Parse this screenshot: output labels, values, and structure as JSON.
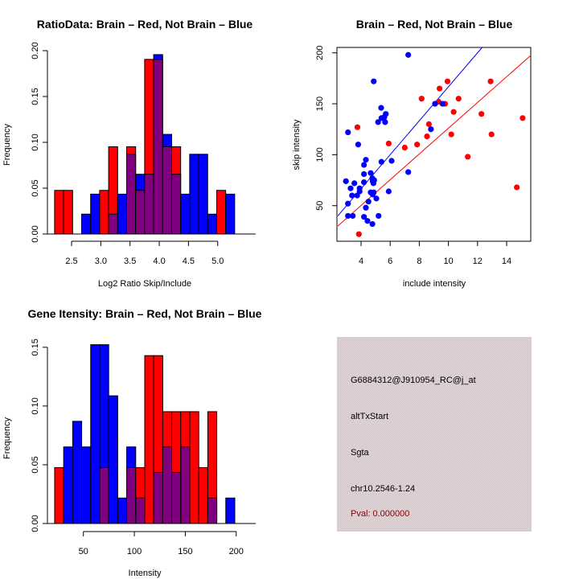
{
  "colors": {
    "brain": "#ff0000",
    "not_brain": "#0000ff",
    "overlap": "#800080",
    "info_panel_bg": "#e8c4cc",
    "pval_text": "#8b0000"
  },
  "chart_data": [
    {
      "id": "ratio-hist",
      "type": "bar",
      "title": "RatioData: Brain – Red, Not Brain – Blue",
      "xlabel": "Log2 Ratio Skip/Include",
      "ylabel": "Frequency",
      "xlim": [
        2.2,
        5.3
      ],
      "ylim": [
        0,
        0.2
      ],
      "xticks": [
        "2.5",
        "3.0",
        "3.5",
        "4.0",
        "4.5",
        "5.0"
      ],
      "xtick_values": [
        2.5,
        3.0,
        3.5,
        4.0,
        4.5,
        5.0
      ],
      "yticks": [
        "0.00",
        "0.05",
        "0.10",
        "0.15",
        "0.20"
      ],
      "ytick_values": [
        0,
        0.05,
        0.1,
        0.15,
        0.2
      ],
      "bin_start": 2.21,
      "bin_width": 0.154,
      "series": [
        {
          "name": "Brain",
          "color": "red",
          "values": [
            0.0476,
            0.0476,
            0,
            0,
            0,
            0.0476,
            0.0952,
            0,
            0.0952,
            0.0476,
            0.1905,
            0.1905,
            0.0952,
            0.0952,
            0,
            0,
            0,
            0,
            0.0476,
            0
          ]
        },
        {
          "name": "Not Brain",
          "color": "blue",
          "values": [
            0,
            0,
            0,
            0.0217,
            0.0435,
            0,
            0.0217,
            0.0435,
            0.087,
            0.0652,
            0.0652,
            0.1957,
            0.1087,
            0.0652,
            0.0435,
            0.087,
            0.087,
            0.0217,
            0,
            0.0435
          ]
        }
      ]
    },
    {
      "id": "intensity-scatter",
      "type": "scatter",
      "title": "Brain – Red, Not Brain – Blue",
      "xlabel": "include intensity",
      "ylabel": "skip intensity",
      "xlim": [
        2.4,
        15.7
      ],
      "ylim": [
        15,
        205
      ],
      "xticks": [
        "4",
        "6",
        "8",
        "10",
        "12",
        "14"
      ],
      "xtick_values": [
        4,
        6,
        8,
        10,
        12,
        14
      ],
      "yticks": [
        "50",
        "100",
        "150",
        "200"
      ],
      "ytick_values": [
        50,
        100,
        150,
        200
      ],
      "series": [
        {
          "name": "Not Brain",
          "color": "blue",
          "points": [
            [
              7.24,
              198
            ],
            [
              4.87,
              172
            ],
            [
              5.38,
              146
            ],
            [
              5.4,
              136
            ],
            [
              5.6,
              137
            ],
            [
              5.7,
              140
            ],
            [
              5.17,
              132
            ],
            [
              5.65,
              132
            ],
            [
              3.1,
              122
            ],
            [
              3.8,
              110
            ],
            [
              4.33,
              95
            ],
            [
              5.4,
              93
            ],
            [
              6.1,
              94
            ],
            [
              4.2,
              90
            ],
            [
              8.8,
              125
            ],
            [
              9.08,
              150
            ],
            [
              9.6,
              150
            ],
            [
              7.24,
              83
            ],
            [
              4.2,
              81
            ],
            [
              4.66,
              82
            ],
            [
              2.96,
              74
            ],
            [
              4.2,
              73
            ],
            [
              3.54,
              72
            ],
            [
              4.77,
              77
            ],
            [
              4.8,
              74
            ],
            [
              4.9,
              75
            ],
            [
              4.85,
              72
            ],
            [
              3.28,
              67
            ],
            [
              3.9,
              67
            ],
            [
              3.9,
              64
            ],
            [
              4.66,
              63
            ],
            [
              4.87,
              63
            ],
            [
              3.38,
              60
            ],
            [
              3.73,
              60
            ],
            [
              4.8,
              61
            ],
            [
              5.9,
              64
            ],
            [
              4.51,
              54
            ],
            [
              5.05,
              57
            ],
            [
              3.1,
              52
            ],
            [
              4.33,
              48
            ],
            [
              3.1,
              40
            ],
            [
              3.43,
              40
            ],
            [
              4.2,
              39
            ],
            [
              4.44,
              35
            ],
            [
              4.78,
              32
            ],
            [
              5.2,
              40
            ]
          ],
          "fit_line": [
            [
              2.4,
              40
            ],
            [
              12.3,
              205
            ]
          ]
        },
        {
          "name": "Brain",
          "color": "red",
          "points": [
            [
              9.94,
              172
            ],
            [
              12.9,
              172
            ],
            [
              9.39,
              165
            ],
            [
              8.16,
              155
            ],
            [
              10.7,
              155
            ],
            [
              9.33,
              152
            ],
            [
              9.77,
              150
            ],
            [
              10.36,
              142
            ],
            [
              12.27,
              140
            ],
            [
              15.1,
              136
            ],
            [
              8.66,
              130
            ],
            [
              3.75,
              127
            ],
            [
              8.53,
              118
            ],
            [
              10.2,
              120
            ],
            [
              12.96,
              120
            ],
            [
              5.9,
              111
            ],
            [
              7.85,
              110
            ],
            [
              7.0,
              107
            ],
            [
              11.33,
              98
            ],
            [
              14.7,
              68
            ],
            [
              3.85,
              22
            ]
          ],
          "fit_line": [
            [
              2.4,
              30
            ],
            [
              15.7,
              198
            ]
          ]
        }
      ]
    },
    {
      "id": "gene-intensity-hist",
      "type": "bar",
      "title": "Gene Itensity: Brain – Red, Not Brain – Blue",
      "xlabel": "Intensity",
      "ylabel": "Frequency",
      "xlim": [
        22,
        199
      ],
      "ylim": [
        0,
        0.15
      ],
      "xticks": [
        "50",
        "100",
        "150",
        "200"
      ],
      "xtick_values": [
        50,
        100,
        150,
        200
      ],
      "yticks": [
        "0.00",
        "0.05",
        "0.10",
        "0.15"
      ],
      "ytick_values": [
        0,
        0.05,
        0.1,
        0.15
      ],
      "bin_start": 21.8,
      "bin_width": 8.84,
      "series": [
        {
          "name": "Brain",
          "color": "red",
          "values": [
            0.0476,
            0,
            0,
            0,
            0,
            0.0476,
            0,
            0,
            0.0476,
            0.0476,
            0.1429,
            0.1429,
            0.0952,
            0.0952,
            0.0952,
            0.0952,
            0.0476,
            0.0952,
            0,
            0
          ]
        },
        {
          "name": "Not Brain",
          "color": "blue",
          "values": [
            0,
            0.0652,
            0.087,
            0.0652,
            0.1522,
            0.1522,
            0.1087,
            0.0217,
            0.0652,
            0.0217,
            0,
            0.0435,
            0.0652,
            0.0435,
            0.0652,
            0,
            0,
            0.0217,
            0,
            0.0217
          ]
        }
      ]
    }
  ],
  "info_panel": {
    "probe_id": "G6884312@J910954_RC@j_at",
    "event_type": "altTxStart",
    "gene": "Sgta",
    "location": "chr10.2546-1.24",
    "pval": "Pval: 0.000000"
  }
}
